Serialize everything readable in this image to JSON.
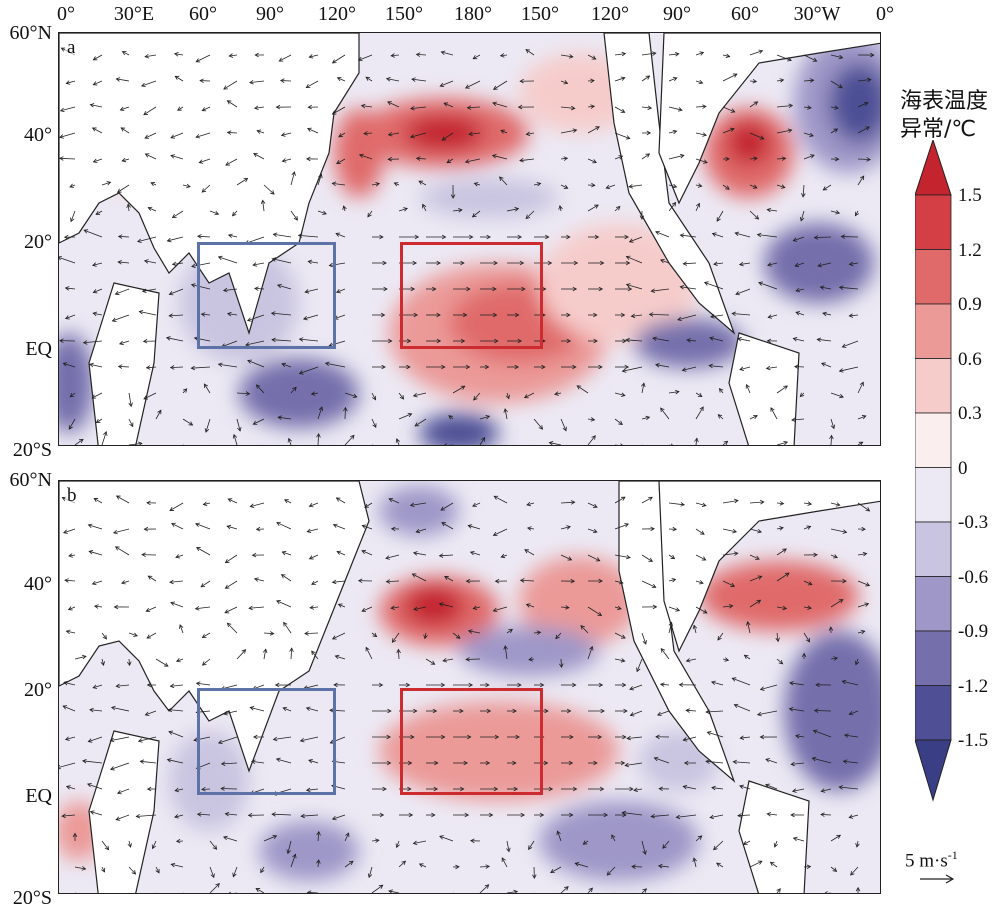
{
  "longitude_labels": [
    "0°",
    "30°E",
    "60°",
    "90°",
    "120°",
    "150°",
    "180°",
    "150°",
    "120°",
    "90°",
    "60°",
    "30°W",
    "0°"
  ],
  "latitude_labels": [
    "60°N",
    "40°",
    "20°",
    "EQ",
    "20°S"
  ],
  "panels": [
    {
      "letter": "a"
    },
    {
      "letter": "b"
    }
  ],
  "boxes": {
    "blue_region": {
      "lon_range": [
        "60°E",
        "120°E"
      ],
      "lat_range": [
        "EQ",
        "20°N"
      ],
      "color": "#5d73a8"
    },
    "red_region": {
      "lon_range": [
        "150°E",
        "150°W"
      ],
      "lat_range": [
        "EQ",
        "20°N"
      ],
      "color": "#cc2b30"
    }
  },
  "colorbar": {
    "title_line1": "海表温度",
    "title_line2": "异常/℃",
    "levels": [
      "1.5",
      "1.2",
      "0.9",
      "0.6",
      "0.3",
      "0",
      "-0.3",
      "-0.6",
      "-0.9",
      "-1.2",
      "-1.5"
    ],
    "colors": [
      "#c3242e",
      "#d33f45",
      "#e06a6a",
      "#eb9a98",
      "#f6cccb",
      "#fbeeee",
      "#ece9f4",
      "#c9c4e0",
      "#9e97c8",
      "#756fac",
      "#4e4f95",
      "#3a3f85"
    ]
  },
  "wind_scale": {
    "label": "5 m·s",
    "exponent": "-1"
  }
}
